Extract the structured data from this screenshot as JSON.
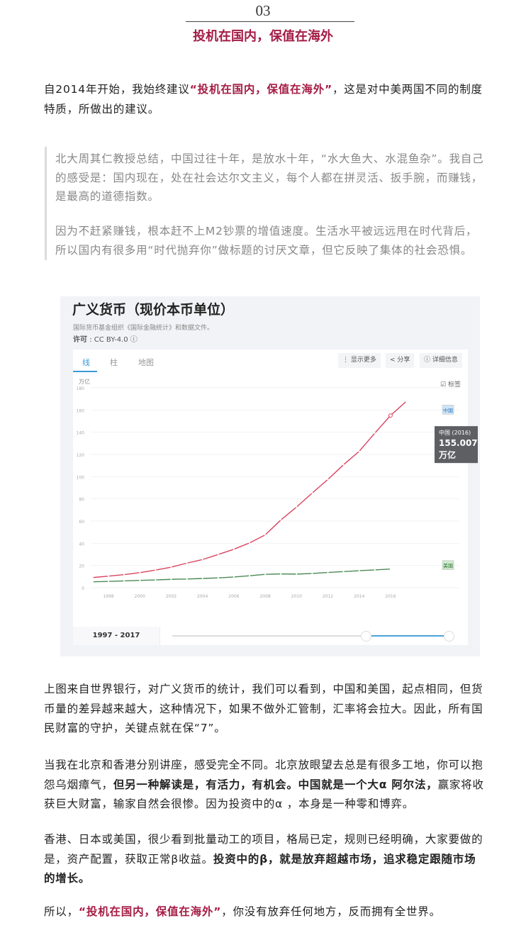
{
  "section": {
    "number": "03",
    "title": "投机在国内，保值在海外"
  },
  "para1": {
    "pre": "自2014年开始，我始终建议",
    "highlight": "“投机在国内，保值在海外”",
    "post": "，这是对中美两国不同的制度特质，所做出的建议。"
  },
  "quote": {
    "p1": "北大周其仁教授总结，中国过往十年，是放水十年，“水大鱼大、水混鱼杂”。我自己的感受是：国内现在，处在社会达尔文主义，每个人都在拼灵活、扳手腕，而赚钱，是最高的道德指数。",
    "p2": "因为不赶紧赚钱，根本赶不上M2钞票的增值速度。生活水平被远远甩在时代背后，所以国内有很多用“时代抛弃你”做标题的讨厌文章，但它反映了集体的社会恐惧。"
  },
  "chart_widget": {
    "title": "广义货币（现价本币单位）",
    "source": "国际货币基金组织《国际金融统计》和数据文件。",
    "license_label": "许可",
    "license_value": ": CC BY-4.0 ⓘ",
    "tabs": [
      "线",
      "柱",
      "地图"
    ],
    "active_tab": 0,
    "buttons": {
      "more": "⋮ 显示更多",
      "share": "< 分享",
      "details": "ⓘ 详细信息"
    },
    "label_checkbox": "标签",
    "label_checked": true,
    "range_label": "1997 - 2017",
    "slider_fill": [
      0.7,
      1.0
    ],
    "tooltip": {
      "title": "中国 (2016)",
      "value": "155.007",
      "unit": "万亿"
    }
  },
  "chart_data": {
    "type": "line",
    "title": "广义货币（现价本币单位）",
    "ylabel": "万亿",
    "ylim": [
      0,
      180
    ],
    "yticks": [
      0,
      20,
      40,
      60,
      80,
      100,
      120,
      140,
      160,
      180
    ],
    "xticks": [
      1998,
      2000,
      2002,
      2004,
      2006,
      2008,
      2010,
      2012,
      2014,
      2016
    ],
    "x": [
      1997,
      1998,
      1999,
      2000,
      2001,
      2002,
      2003,
      2004,
      2005,
      2006,
      2007,
      2008,
      2009,
      2010,
      2011,
      2012,
      2013,
      2014,
      2015,
      2016,
      2017
    ],
    "grid": true,
    "series": [
      {
        "name": "中国",
        "color": "#d9435e",
        "label_bg": "#cfe5f5",
        "values": [
          9.1,
          10.4,
          11.8,
          13.5,
          15.8,
          18.5,
          22.1,
          25.3,
          29.9,
          34.6,
          40.3,
          47.5,
          61.0,
          72.6,
          85.2,
          97.4,
          110.7,
          122.8,
          139.2,
          155.0,
          167.7
        ]
      },
      {
        "name": "美国",
        "color": "#4a8a55",
        "label_bg": "#cfe9cf",
        "values": [
          5.3,
          5.6,
          6.1,
          6.6,
          7.0,
          7.5,
          7.8,
          8.3,
          8.8,
          9.6,
          10.7,
          12.0,
          12.4,
          12.2,
          12.8,
          13.7,
          14.5,
          15.3,
          16.0,
          16.8,
          null
        ]
      }
    ]
  },
  "para2": "上图来自世界银行，对广义货币的统计，我们可以看到，中国和美国，起点相同，但货币量的差异越来越大，这种情况下，如果不做外汇管制，汇率将会拉大。因此，所有国民财富的守护，关键点就在保“7”。",
  "para3": {
    "pre": "当我在北京和香港分别讲座，感受完全不同。北京放眼望去总是有很多工地，你可以抱怨乌烟瘴气，",
    "bold": "但另一种解读是，有活力，有机会。中国就是一个大α 阿尔法，",
    "post": "赢家将收获巨大财富，输家自然会很惨。因为投资中的α ，本身是一种零和博弈。"
  },
  "para4": {
    "pre": "香港、日本或美国，很少看到批量动工的项目，格局已定，规则已经明确，大家要做的是，资产配置，获取正常β收益。",
    "bold": "投资中的β，就是放弃超越市场，追求稳定跟随市场的增长。"
  },
  "para5": {
    "pre": "所以，",
    "highlight": "“投机在国内，保值在海外”",
    "post": "，你没有放弃任何地方，反而拥有全世界。"
  }
}
